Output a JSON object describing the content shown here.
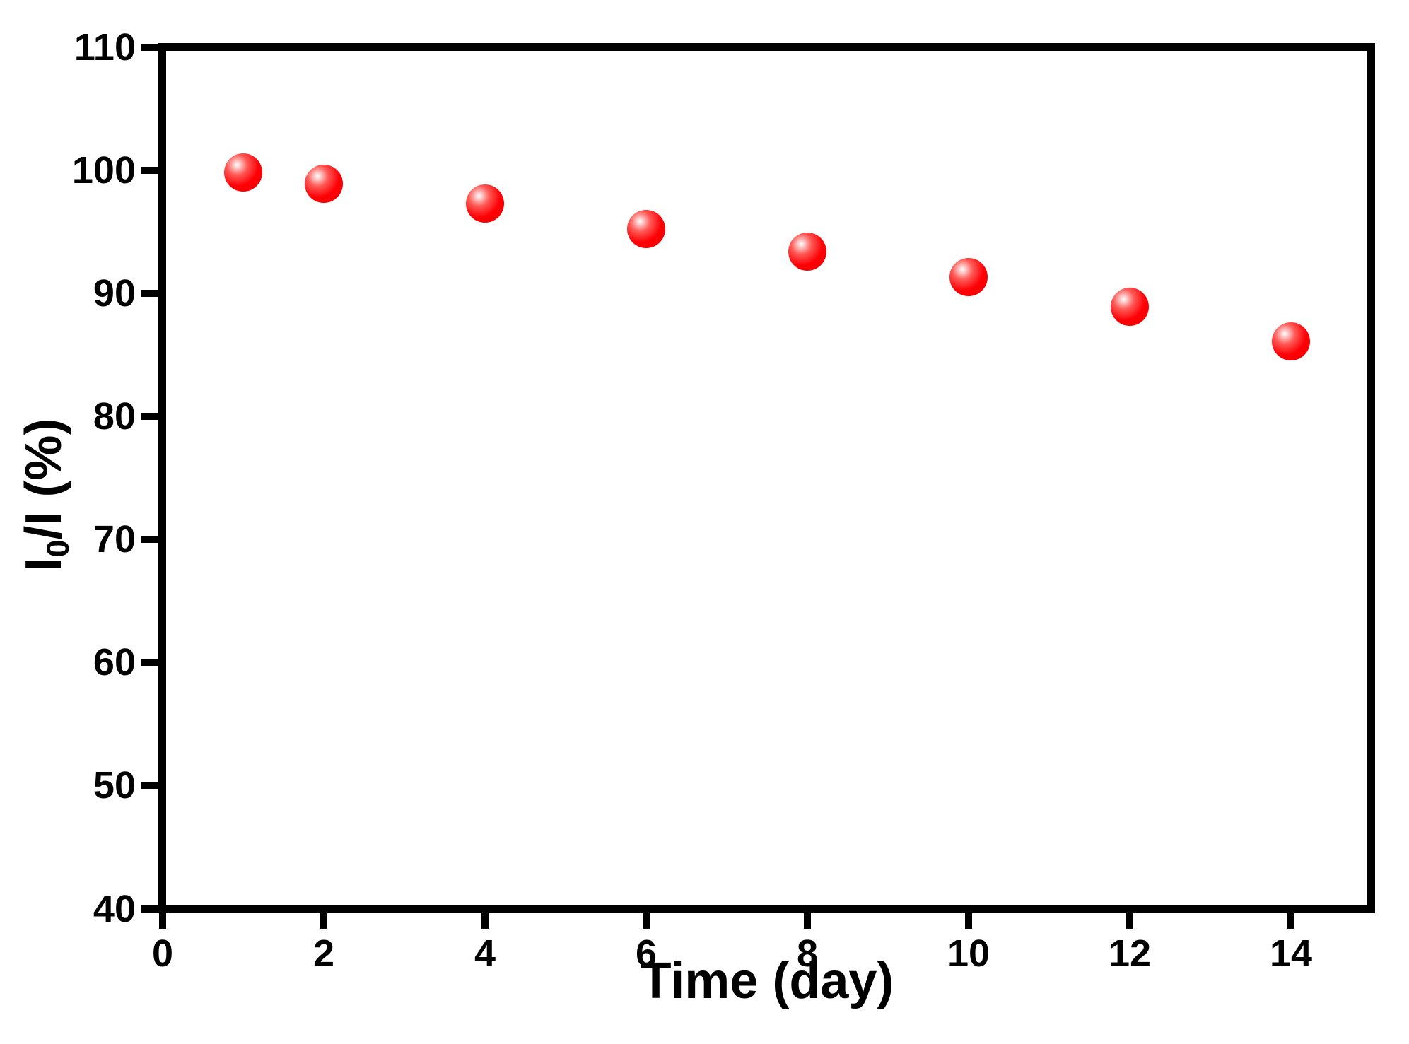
{
  "figure": {
    "background_color": "#ffffff",
    "axis_color": "#000000",
    "marker_color": "#fe0005"
  },
  "chart_data": {
    "type": "scatter",
    "series": [
      {
        "name": "red-sphere-series",
        "x": [
          1,
          2,
          4,
          6,
          8,
          10,
          12,
          14
        ],
        "y": [
          99.8,
          98.9,
          97.3,
          95.2,
          93.4,
          91.3,
          88.9,
          86.1
        ]
      }
    ],
    "title": "",
    "xlabel": "Time (day)",
    "ylabel_text": "I0/I (%)",
    "ylabel": {
      "pre": "I",
      "sub": "0",
      "post": "/I (%)"
    },
    "xlim": [
      0,
      15
    ],
    "ylim": [
      40,
      110
    ],
    "xticks": [
      0,
      2,
      4,
      6,
      8,
      10,
      12,
      14
    ],
    "yticks": [
      40,
      50,
      60,
      70,
      80,
      90,
      100,
      110
    ],
    "grid": false,
    "legend_position": "none",
    "marker_shape": "sphere",
    "marker_color": "#fe0005"
  }
}
